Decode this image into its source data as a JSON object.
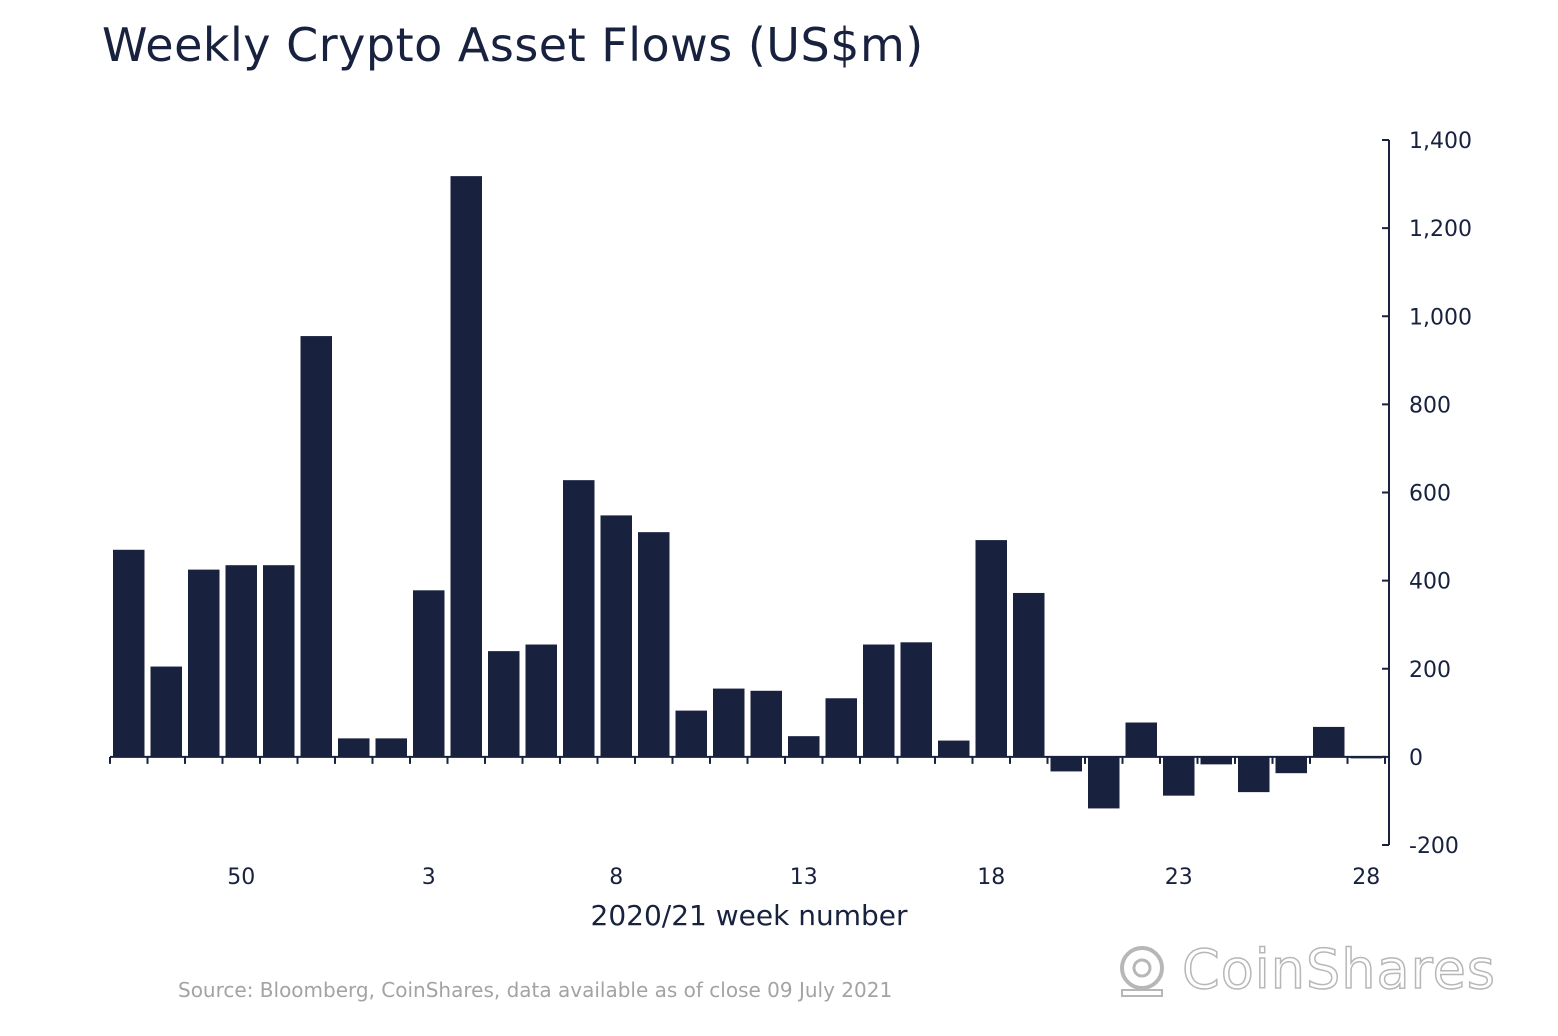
{
  "chart_data": {
    "type": "bar",
    "title": "Weekly Crypto Asset Flows (US$m)",
    "xlabel": "2020/21 week number",
    "ylabel": "",
    "ylim": [
      -200,
      1400
    ],
    "yticks": [
      -200,
      0,
      200,
      400,
      600,
      800,
      1000,
      1200,
      1400
    ],
    "ytick_labels": [
      "-200",
      "0",
      "200",
      "400",
      "600",
      "800",
      "1,000",
      "1,200",
      "1,400"
    ],
    "x_tick_labels": [
      {
        "week": "50",
        "index": 3.5
      },
      {
        "week": "3",
        "index": 8.5
      },
      {
        "week": "8",
        "index": 13.5
      },
      {
        "week": "13",
        "index": 18.5
      },
      {
        "week": "18",
        "index": 23.5
      },
      {
        "week": "23",
        "index": 28.5
      },
      {
        "week": "28",
        "index": 33.5
      }
    ],
    "values": [
      470,
      205,
      425,
      435,
      435,
      955,
      42,
      42,
      378,
      1318,
      240,
      255,
      628,
      548,
      510,
      105,
      155,
      150,
      47,
      133,
      255,
      260,
      37,
      492,
      372,
      -33,
      -117,
      78,
      -88,
      -17,
      -80,
      -37,
      68,
      -3
    ],
    "grid": false,
    "legend": "none",
    "y_axis_position": "right",
    "bar_color": "#18223f"
  },
  "source_text": "Source: Bloomberg, CoinShares, data available as of close 09 July 2021",
  "logo": {
    "text": "CoinShares",
    "icon": "coinshares-logo-icon"
  }
}
